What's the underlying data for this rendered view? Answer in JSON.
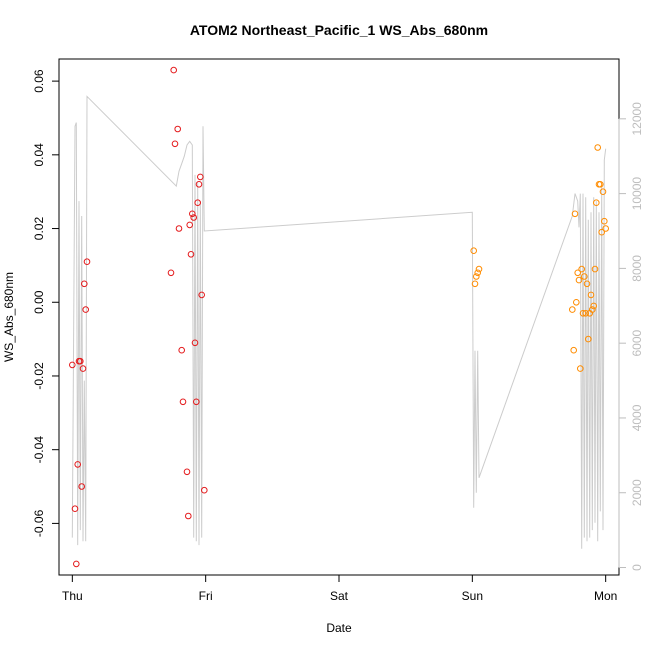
{
  "chart_data": {
    "type": "scatter",
    "title": "ATOM2 Northeast_Pacific_1 WS_Abs_680nm",
    "xlabel": "Date",
    "ylabel": "WS_Abs_680nm",
    "x_ticks": [
      "Thu",
      "Fri",
      "Sat",
      "Sun",
      "Mon"
    ],
    "x_range": [
      -0.1,
      4.1
    ],
    "ylim": [
      -0.074,
      0.066
    ],
    "y_ticks": [
      -0.06,
      -0.04,
      -0.02,
      0.0,
      0.02,
      0.04,
      0.06
    ],
    "y_tick_labels": [
      "-0.06",
      "-0.04",
      "-0.02",
      "0.00",
      "0.02",
      "0.04",
      "0.06"
    ],
    "y2lim": [
      -200,
      13600
    ],
    "y2_ticks": [
      0,
      2000,
      4000,
      6000,
      8000,
      10000,
      12000
    ],
    "y2_tick_labels": [
      "0",
      "2000",
      "4000",
      "6000",
      "8000",
      "10000",
      "12000"
    ],
    "grid": false,
    "series": [
      {
        "color": "#e41a1c",
        "x": [
          0.0,
          0.02,
          0.03,
          0.04,
          0.05,
          0.06,
          0.07,
          0.08,
          0.09,
          0.1,
          0.11,
          0.74,
          0.76,
          0.77,
          0.79,
          0.8,
          0.82,
          0.83,
          0.86,
          0.87,
          0.88,
          0.89,
          0.9,
          0.91,
          0.92,
          0.93,
          0.94,
          0.95,
          0.96,
          0.97,
          0.99
        ],
        "y": [
          -0.017,
          -0.056,
          -0.071,
          -0.044,
          -0.016,
          -0.016,
          -0.05,
          -0.018,
          0.005,
          -0.002,
          0.011,
          0.008,
          0.063,
          0.043,
          0.047,
          0.02,
          -0.013,
          -0.027,
          -0.046,
          -0.058,
          0.021,
          0.013,
          0.024,
          0.023,
          -0.011,
          -0.027,
          0.027,
          0.032,
          0.034,
          0.002,
          -0.051
        ]
      },
      {
        "color": "#ff8c00",
        "x": [
          3.01,
          3.02,
          3.03,
          3.04,
          3.05,
          3.75,
          3.76,
          3.77,
          3.78,
          3.79,
          3.8,
          3.81,
          3.82,
          3.83,
          3.84,
          3.85,
          3.86,
          3.87,
          3.88,
          3.89,
          3.9,
          3.91,
          3.92,
          3.93,
          3.94,
          3.95,
          3.96,
          3.97,
          3.98,
          3.99,
          4.0
        ],
        "y": [
          0.014,
          0.005,
          0.007,
          0.008,
          0.009,
          -0.002,
          -0.013,
          0.024,
          0.0,
          0.008,
          0.006,
          -0.018,
          0.009,
          -0.003,
          0.007,
          -0.003,
          0.005,
          -0.01,
          -0.003,
          0.002,
          -0.002,
          -0.001,
          0.009,
          0.027,
          0.042,
          0.032,
          0.032,
          0.019,
          0.03,
          0.022,
          0.02
        ]
      },
      {
        "axis": "right",
        "color": "#cccccc",
        "x": [
          0.0,
          0.02,
          0.03,
          0.04,
          0.05,
          0.06,
          0.07,
          0.08,
          0.09,
          0.1,
          0.11,
          0.78,
          0.8,
          0.82,
          0.84,
          0.86,
          0.88,
          0.9,
          0.91,
          0.92,
          0.93,
          0.94,
          0.95,
          0.96,
          0.97,
          0.98,
          0.99,
          3.0,
          3.01,
          3.02,
          3.03,
          3.04,
          3.05,
          3.75,
          3.77,
          3.79,
          3.8,
          3.81,
          3.82,
          3.83,
          3.84,
          3.85,
          3.86,
          3.87,
          3.88,
          3.89,
          3.9,
          3.91,
          3.92,
          3.93,
          3.94,
          3.95,
          3.96,
          3.97,
          3.98,
          3.99,
          4.0
        ],
        "y": [
          800,
          11800,
          11900,
          600,
          9800,
          1000,
          9400,
          700,
          5000,
          700,
          12600,
          10200,
          10600,
          10800,
          11000,
          11300,
          11400,
          11300,
          800,
          10500,
          700,
          10300,
          600,
          9800,
          800,
          11800,
          9000,
          9500,
          1600,
          5800,
          2000,
          5800,
          2400,
          9400,
          10000,
          9800,
          9100,
          10000,
          500,
          10000,
          800,
          9900,
          700,
          9300,
          800,
          9500,
          1000,
          9900,
          1200,
          9800,
          700,
          9500,
          1500,
          10200,
          1000,
          10900,
          11200
        ]
      }
    ]
  }
}
